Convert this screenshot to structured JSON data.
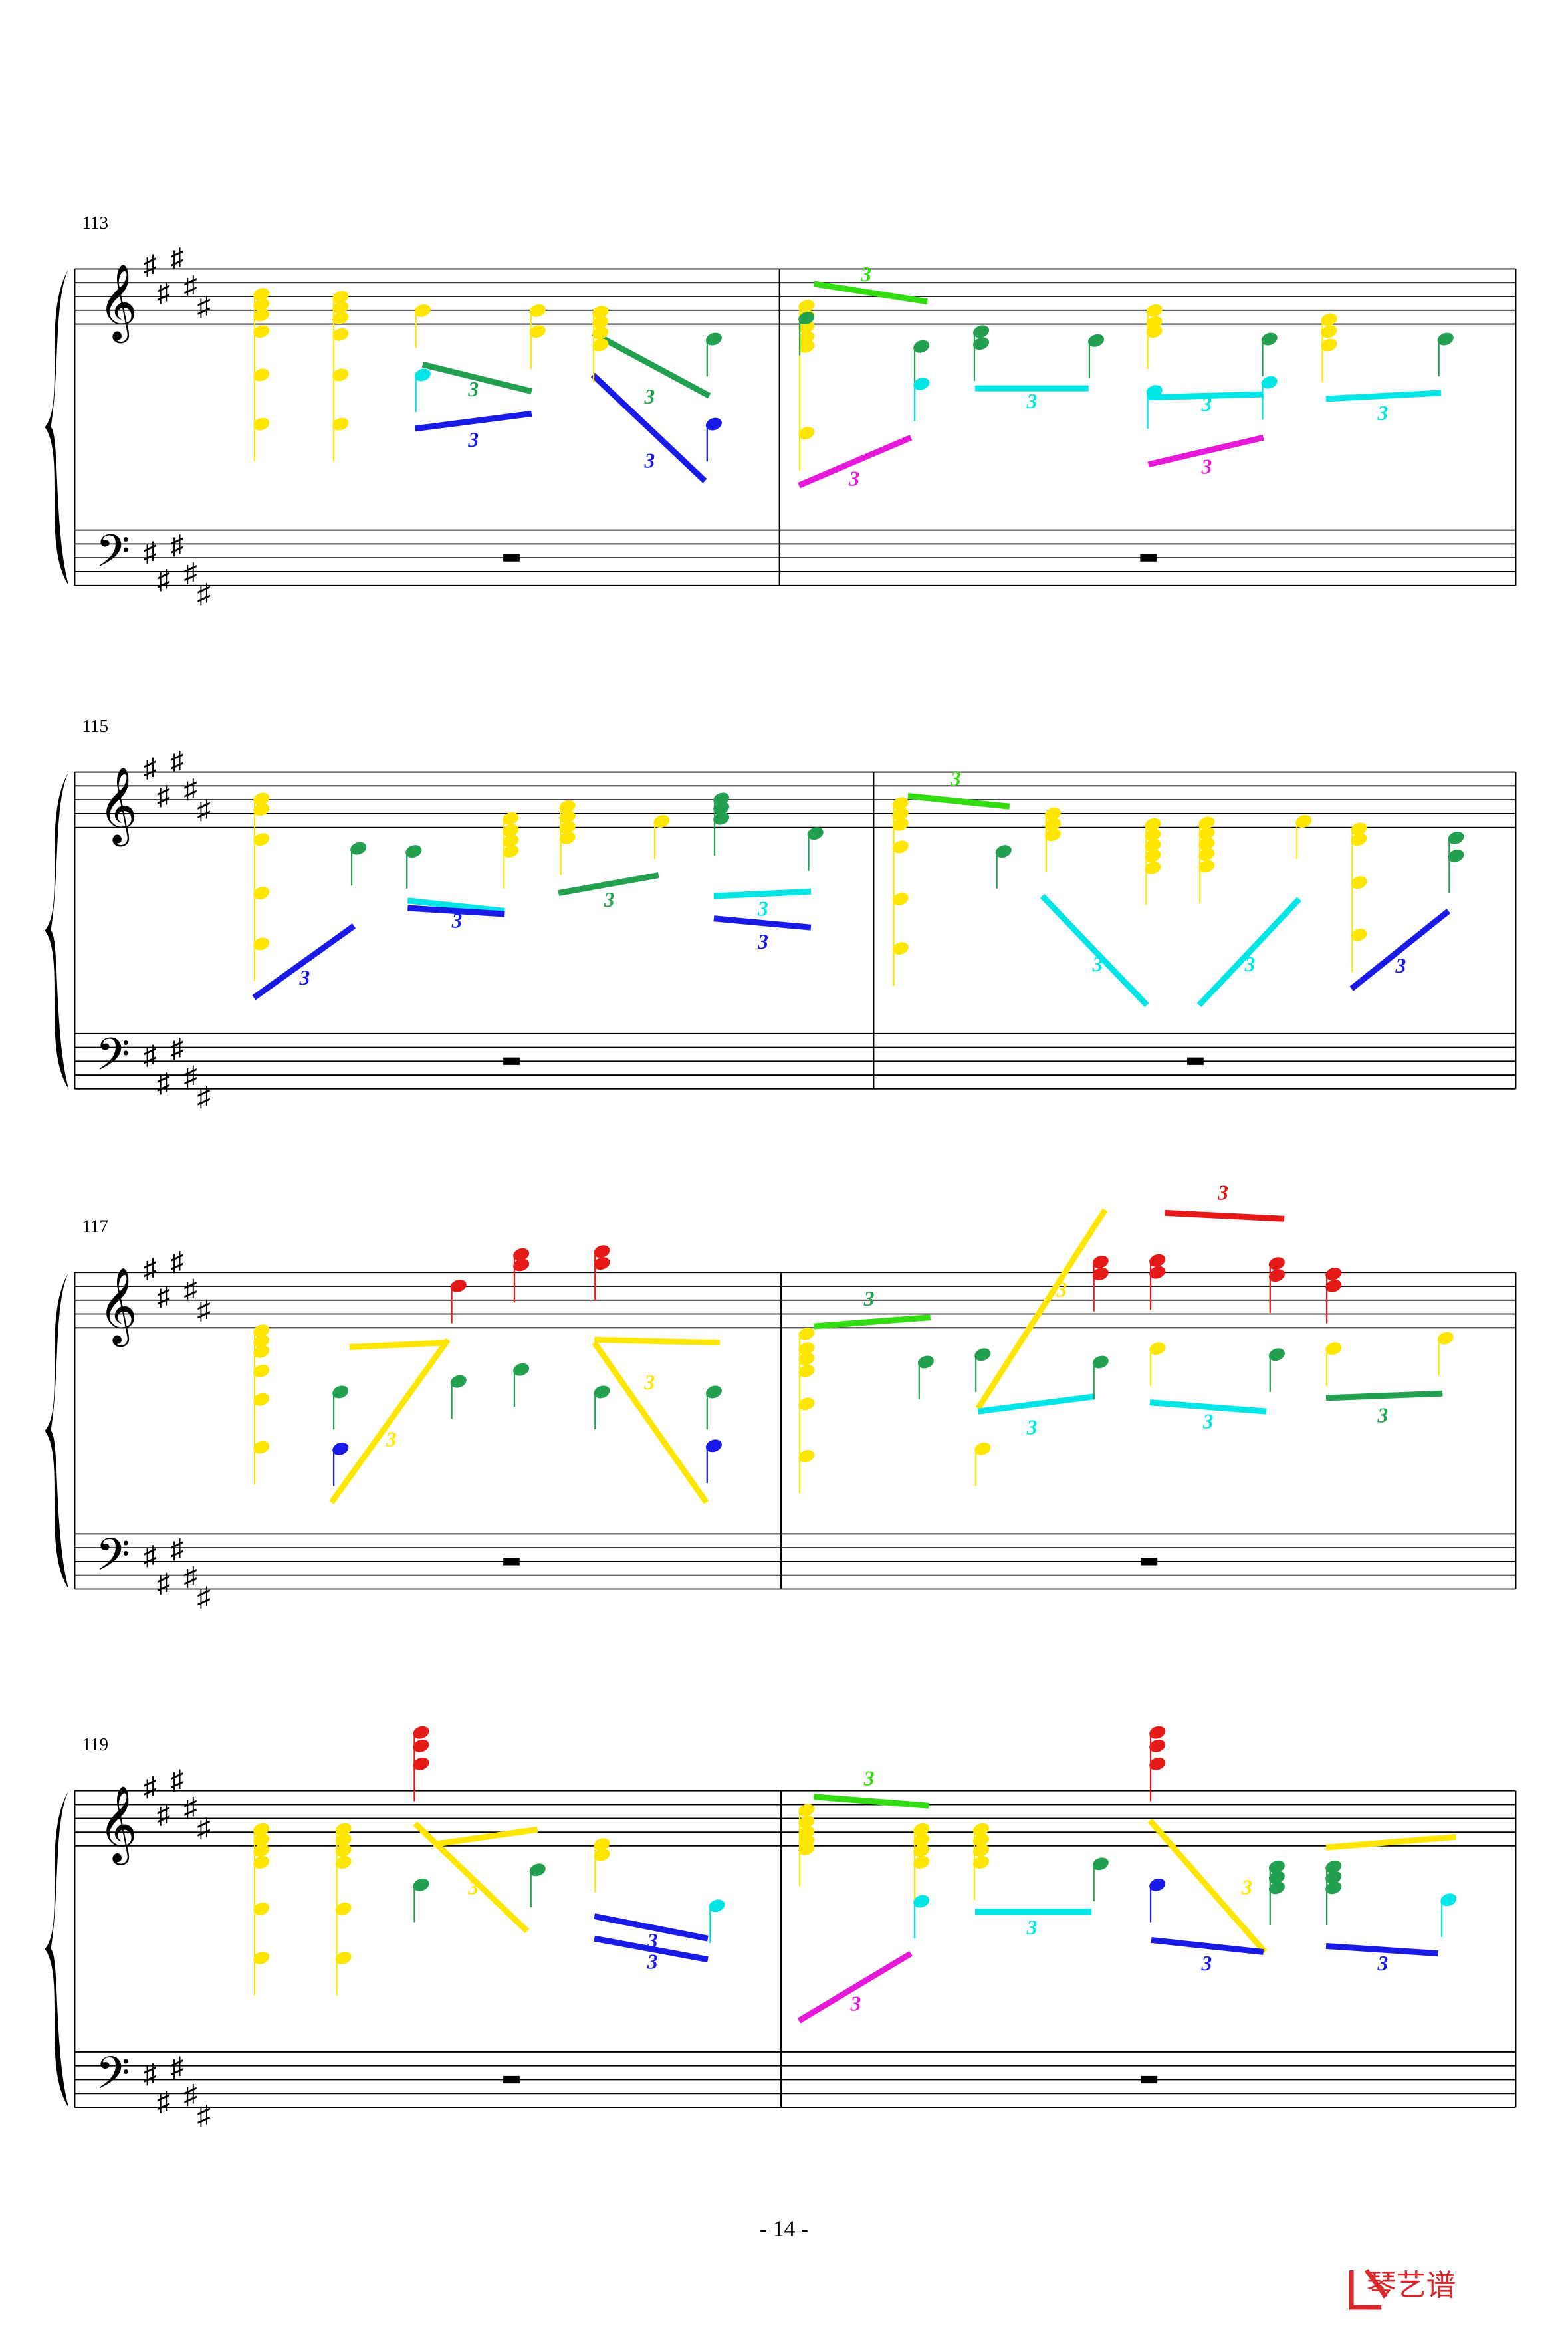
{
  "systems": [
    {
      "measure": "113",
      "triplets": [
        "3",
        "3",
        "3",
        "3",
        "3",
        "3",
        "3",
        "3",
        "3",
        "3"
      ]
    },
    {
      "measure": "115",
      "triplets": [
        "3",
        "3",
        "3",
        "3",
        "3",
        "3",
        "3",
        "3",
        "3",
        "3"
      ]
    },
    {
      "measure": "117",
      "triplets": [
        "3",
        "3",
        "3",
        "3",
        "3",
        "3",
        "3",
        "3"
      ]
    },
    {
      "measure": "119",
      "triplets": [
        "3",
        "3",
        "3",
        "3",
        "3",
        "3",
        "3",
        "3",
        "3"
      ]
    }
  ],
  "footer": {
    "page_number": "- 14 -",
    "logo": "琴艺谱"
  }
}
